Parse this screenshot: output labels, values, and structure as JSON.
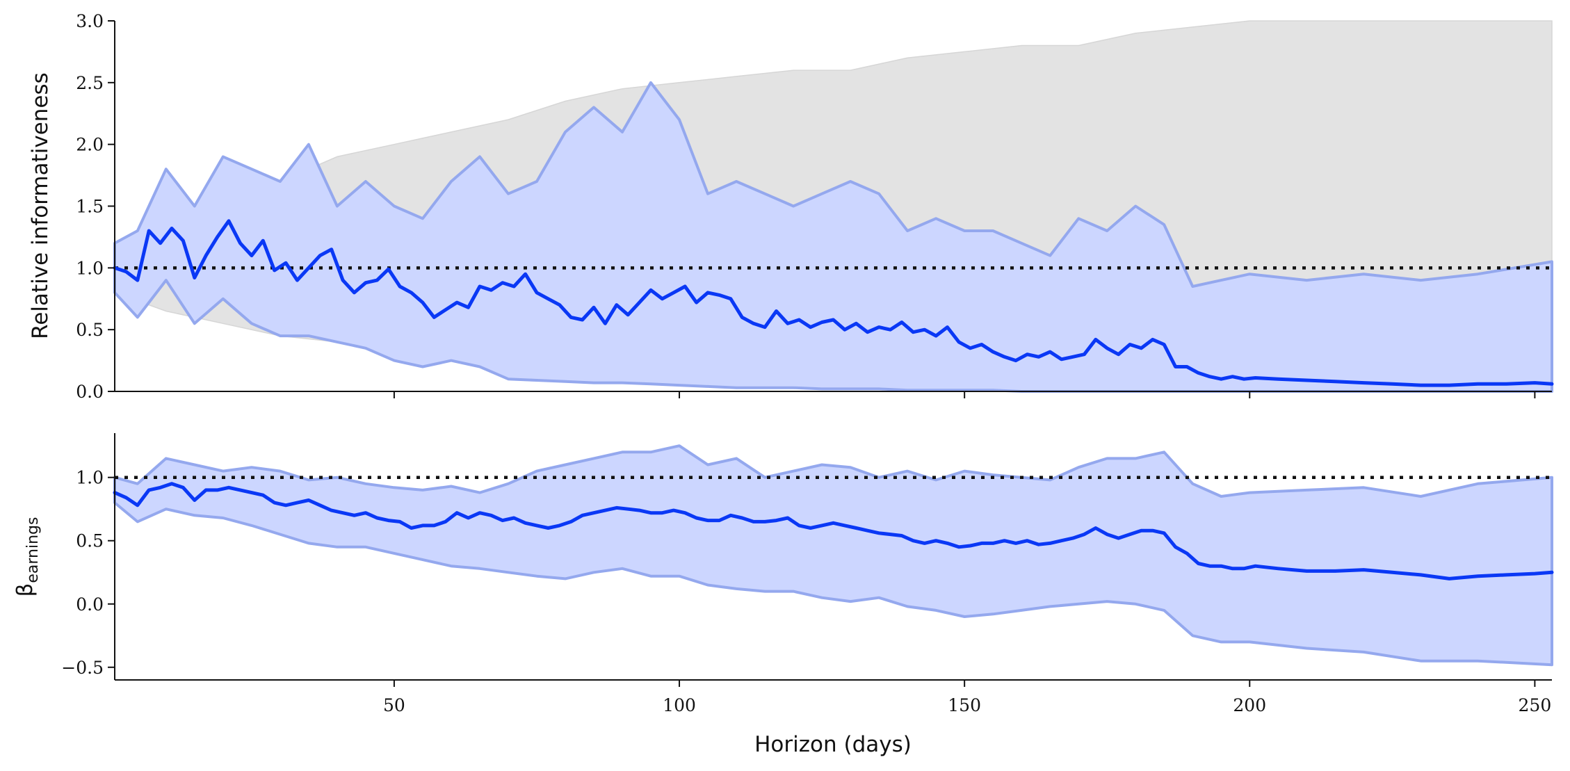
{
  "colors": {
    "main_line": "#0a38f5",
    "ci_fill": "#ccd6ff",
    "ci_edge": "#94a8ee",
    "grey_fill": "#e3e3e3",
    "reference": "#111111"
  },
  "chart_data": [
    {
      "type": "line",
      "panel": "top",
      "xlabel": "",
      "ylabel": "Relative informativeness",
      "xlim": [
        1,
        253
      ],
      "ylim": [
        0,
        3
      ],
      "xticks": [
        50,
        100,
        150,
        200,
        250
      ],
      "yticks": [
        0.0,
        0.5,
        1.0,
        1.5,
        2.0,
        2.5,
        3.0
      ],
      "ytick_labels": [
        "0.0",
        "0.5",
        "1.0",
        "1.5",
        "2.0",
        "2.5",
        "3.0"
      ],
      "reference_line": 1.0,
      "grid": false,
      "legend": "none",
      "series": [
        {
          "style": "band-grey",
          "x": [
            1,
            10,
            20,
            30,
            40,
            50,
            60,
            70,
            80,
            90,
            100,
            110,
            120,
            130,
            140,
            150,
            160,
            170,
            180,
            190,
            200,
            210,
            220,
            230,
            240,
            253
          ],
          "upper": [
            1.2,
            1.4,
            1.5,
            1.7,
            1.9,
            2.0,
            2.1,
            2.2,
            2.35,
            2.45,
            2.5,
            2.55,
            2.6,
            2.6,
            2.7,
            2.75,
            2.8,
            2.8,
            2.9,
            2.95,
            3.0,
            3.0,
            3.0,
            3.0,
            3.0,
            3.0
          ],
          "lower": [
            0.8,
            0.65,
            0.55,
            0.45,
            0.4,
            0.3,
            0.25,
            0.2,
            0.15,
            0.12,
            0.1,
            0.08,
            0.06,
            0.05,
            0.04,
            0.03,
            0.02,
            0.02,
            0.01,
            0.01,
            0.0,
            0.0,
            0.0,
            0.0,
            0.0,
            0.0
          ]
        },
        {
          "style": "band-blue",
          "x": [
            1,
            5,
            10,
            15,
            20,
            25,
            30,
            35,
            40,
            45,
            50,
            55,
            60,
            65,
            70,
            75,
            80,
            85,
            90,
            95,
            100,
            105,
            110,
            115,
            120,
            125,
            130,
            135,
            140,
            145,
            150,
            155,
            160,
            165,
            170,
            175,
            180,
            185,
            190,
            195,
            200,
            210,
            220,
            230,
            240,
            253
          ],
          "upper": [
            1.2,
            1.3,
            1.8,
            1.5,
            1.9,
            1.8,
            1.7,
            2.0,
            1.5,
            1.7,
            1.5,
            1.4,
            1.7,
            1.9,
            1.6,
            1.7,
            2.1,
            2.3,
            2.1,
            2.5,
            2.2,
            1.6,
            1.7,
            1.6,
            1.5,
            1.6,
            1.7,
            1.6,
            1.3,
            1.4,
            1.3,
            1.3,
            1.2,
            1.1,
            1.4,
            1.3,
            1.5,
            1.35,
            0.85,
            0.9,
            0.95,
            0.9,
            0.95,
            0.9,
            0.95,
            1.05
          ],
          "lower": [
            0.8,
            0.6,
            0.9,
            0.55,
            0.75,
            0.55,
            0.45,
            0.45,
            0.4,
            0.35,
            0.25,
            0.2,
            0.25,
            0.2,
            0.1,
            0.09,
            0.08,
            0.07,
            0.07,
            0.06,
            0.05,
            0.04,
            0.03,
            0.03,
            0.03,
            0.02,
            0.02,
            0.02,
            0.01,
            0.01,
            0.01,
            0.01,
            0.0,
            0.0,
            0.0,
            0.0,
            0.0,
            0.0,
            0.0,
            0.0,
            0.0,
            0.0,
            0.0,
            0.0,
            0.0,
            0.0
          ]
        },
        {
          "style": "line",
          "x": [
            1,
            3,
            5,
            7,
            9,
            11,
            13,
            15,
            17,
            19,
            21,
            23,
            25,
            27,
            29,
            31,
            33,
            35,
            37,
            39,
            41,
            43,
            45,
            47,
            49,
            51,
            53,
            55,
            57,
            59,
            61,
            63,
            65,
            67,
            69,
            71,
            73,
            75,
            77,
            79,
            81,
            83,
            85,
            87,
            89,
            91,
            93,
            95,
            97,
            99,
            101,
            103,
            105,
            107,
            109,
            111,
            113,
            115,
            117,
            119,
            121,
            123,
            125,
            127,
            129,
            131,
            133,
            135,
            137,
            139,
            141,
            143,
            145,
            147,
            149,
            151,
            153,
            155,
            157,
            159,
            161,
            163,
            165,
            167,
            169,
            171,
            173,
            175,
            177,
            179,
            181,
            183,
            185,
            187,
            189,
            191,
            193,
            195,
            197,
            199,
            201,
            205,
            210,
            215,
            220,
            225,
            230,
            235,
            240,
            245,
            250,
            253
          ],
          "y": [
            1.0,
            0.97,
            0.9,
            1.3,
            1.2,
            1.32,
            1.22,
            0.92,
            1.1,
            1.25,
            1.38,
            1.2,
            1.1,
            1.22,
            0.98,
            1.04,
            0.9,
            1.0,
            1.1,
            1.15,
            0.9,
            0.8,
            0.88,
            0.9,
            0.99,
            0.85,
            0.8,
            0.72,
            0.6,
            0.66,
            0.72,
            0.68,
            0.85,
            0.82,
            0.88,
            0.85,
            0.95,
            0.8,
            0.75,
            0.7,
            0.6,
            0.58,
            0.68,
            0.55,
            0.7,
            0.62,
            0.72,
            0.82,
            0.75,
            0.8,
            0.85,
            0.72,
            0.8,
            0.78,
            0.75,
            0.6,
            0.55,
            0.52,
            0.65,
            0.55,
            0.58,
            0.52,
            0.56,
            0.58,
            0.5,
            0.55,
            0.48,
            0.52,
            0.5,
            0.56,
            0.48,
            0.5,
            0.45,
            0.52,
            0.4,
            0.35,
            0.38,
            0.32,
            0.28,
            0.25,
            0.3,
            0.28,
            0.32,
            0.26,
            0.28,
            0.3,
            0.42,
            0.35,
            0.3,
            0.38,
            0.35,
            0.42,
            0.38,
            0.2,
            0.2,
            0.15,
            0.12,
            0.1,
            0.12,
            0.1,
            0.11,
            0.1,
            0.09,
            0.08,
            0.07,
            0.06,
            0.05,
            0.05,
            0.06,
            0.06,
            0.07,
            0.06
          ]
        }
      ]
    },
    {
      "type": "line",
      "panel": "bottom",
      "xlabel": "Horizon (days)",
      "ylabel": "β",
      "ylabel_subscript": "earnings",
      "xlim": [
        1,
        253
      ],
      "ylim": [
        -0.6,
        1.35
      ],
      "xticks": [
        50,
        100,
        150,
        200,
        250
      ],
      "xtick_labels": [
        "50",
        "100",
        "150",
        "200",
        "250"
      ],
      "yticks": [
        -0.5,
        0.0,
        0.5,
        1.0
      ],
      "ytick_labels": [
        "−0.5",
        "0.0",
        "0.5",
        "1.0"
      ],
      "reference_line": 1.0,
      "grid": false,
      "legend": "none",
      "series": [
        {
          "style": "band-blue",
          "x": [
            1,
            5,
            10,
            15,
            20,
            25,
            30,
            35,
            40,
            45,
            50,
            55,
            60,
            65,
            70,
            75,
            80,
            85,
            90,
            95,
            100,
            105,
            110,
            115,
            120,
            125,
            130,
            135,
            140,
            145,
            150,
            155,
            160,
            165,
            170,
            175,
            180,
            185,
            190,
            195,
            200,
            210,
            220,
            230,
            240,
            253
          ],
          "upper": [
            1.0,
            0.95,
            1.15,
            1.1,
            1.05,
            1.08,
            1.05,
            0.98,
            1.0,
            0.95,
            0.92,
            0.9,
            0.93,
            0.88,
            0.95,
            1.05,
            1.1,
            1.15,
            1.2,
            1.2,
            1.25,
            1.1,
            1.15,
            1.0,
            1.05,
            1.1,
            1.08,
            1.0,
            1.05,
            0.98,
            1.05,
            1.02,
            1.0,
            0.98,
            1.08,
            1.15,
            1.15,
            1.2,
            0.95,
            0.85,
            0.88,
            0.9,
            0.92,
            0.85,
            0.95,
            1.0
          ],
          "lower": [
            0.8,
            0.65,
            0.75,
            0.7,
            0.68,
            0.62,
            0.55,
            0.48,
            0.45,
            0.45,
            0.4,
            0.35,
            0.3,
            0.28,
            0.25,
            0.22,
            0.2,
            0.25,
            0.28,
            0.22,
            0.22,
            0.15,
            0.12,
            0.1,
            0.1,
            0.05,
            0.02,
            0.05,
            -0.02,
            -0.05,
            -0.1,
            -0.08,
            -0.05,
            -0.02,
            0.0,
            0.02,
            0.0,
            -0.05,
            -0.25,
            -0.3,
            -0.3,
            -0.35,
            -0.38,
            -0.45,
            -0.45,
            -0.48
          ]
        },
        {
          "style": "line",
          "x": [
            1,
            3,
            5,
            7,
            9,
            11,
            13,
            15,
            17,
            19,
            21,
            23,
            25,
            27,
            29,
            31,
            33,
            35,
            37,
            39,
            41,
            43,
            45,
            47,
            49,
            51,
            53,
            55,
            57,
            59,
            61,
            63,
            65,
            67,
            69,
            71,
            73,
            75,
            77,
            79,
            81,
            83,
            85,
            87,
            89,
            91,
            93,
            95,
            97,
            99,
            101,
            103,
            105,
            107,
            109,
            111,
            113,
            115,
            117,
            119,
            121,
            123,
            125,
            127,
            129,
            131,
            133,
            135,
            137,
            139,
            141,
            143,
            145,
            147,
            149,
            151,
            153,
            155,
            157,
            159,
            161,
            163,
            165,
            167,
            169,
            171,
            173,
            175,
            177,
            179,
            181,
            183,
            185,
            187,
            189,
            191,
            193,
            195,
            197,
            199,
            201,
            205,
            210,
            215,
            220,
            225,
            230,
            235,
            240,
            245,
            250,
            253
          ],
          "y": [
            0.88,
            0.84,
            0.78,
            0.9,
            0.92,
            0.95,
            0.92,
            0.82,
            0.9,
            0.9,
            0.92,
            0.9,
            0.88,
            0.86,
            0.8,
            0.78,
            0.8,
            0.82,
            0.78,
            0.74,
            0.72,
            0.7,
            0.72,
            0.68,
            0.66,
            0.65,
            0.6,
            0.62,
            0.62,
            0.65,
            0.72,
            0.68,
            0.72,
            0.7,
            0.66,
            0.68,
            0.64,
            0.62,
            0.6,
            0.62,
            0.65,
            0.7,
            0.72,
            0.74,
            0.76,
            0.75,
            0.74,
            0.72,
            0.72,
            0.74,
            0.72,
            0.68,
            0.66,
            0.66,
            0.7,
            0.68,
            0.65,
            0.65,
            0.66,
            0.68,
            0.62,
            0.6,
            0.62,
            0.64,
            0.62,
            0.6,
            0.58,
            0.56,
            0.55,
            0.54,
            0.5,
            0.48,
            0.5,
            0.48,
            0.45,
            0.46,
            0.48,
            0.48,
            0.5,
            0.48,
            0.5,
            0.47,
            0.48,
            0.5,
            0.52,
            0.55,
            0.6,
            0.55,
            0.52,
            0.55,
            0.58,
            0.58,
            0.56,
            0.45,
            0.4,
            0.32,
            0.3,
            0.3,
            0.28,
            0.28,
            0.3,
            0.28,
            0.26,
            0.26,
            0.27,
            0.25,
            0.23,
            0.2,
            0.22,
            0.23,
            0.24,
            0.25
          ]
        }
      ]
    }
  ]
}
